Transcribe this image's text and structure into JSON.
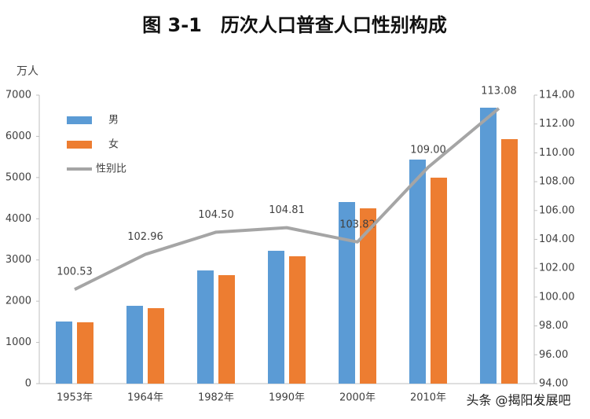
{
  "chart_data": {
    "type": "bar",
    "title": "图 3-1　历次人口普查人口性别构成",
    "y_label": "万人",
    "categories": [
      "1953年",
      "1964年",
      "1982年",
      "1990年",
      "2000年",
      "2010年",
      null
    ],
    "series": [
      {
        "name": "男",
        "color": "#5b9bd5",
        "values": [
          1507,
          1888,
          2746,
          3223,
          4406,
          5436,
          6695
        ]
      },
      {
        "name": "女",
        "color": "#ed7d31",
        "values": [
          1488,
          1831,
          2632,
          3090,
          4253,
          4997,
          5932
        ]
      },
      {
        "name": "性别比",
        "color": "#a5a5a5",
        "type": "line",
        "axis": "y2",
        "values": [
          100.53,
          102.96,
          104.5,
          104.81,
          103.82,
          109,
          113.08
        ],
        "value_labels": [
          "100.53",
          "102.96",
          "104.50",
          "104.81",
          "103.82",
          "109.00",
          "113.08"
        ]
      }
    ],
    "ylim": [
      0,
      7000
    ],
    "yticks": [
      0,
      1000,
      2000,
      3000,
      4000,
      5000,
      6000,
      7000
    ],
    "y2lim": [
      94,
      114
    ],
    "y2ticks": [
      {
        "value": 94,
        "label": "94.00"
      },
      {
        "value": 96,
        "label": "96.00"
      },
      {
        "value": 98,
        "label": "98.00"
      },
      {
        "value": 100,
        "label": "100.00"
      },
      {
        "value": 102,
        "label": "102.00"
      },
      {
        "value": 104,
        "label": "104.00"
      },
      {
        "value": 106,
        "label": "106.00"
      },
      {
        "value": 108,
        "label": "108.00"
      },
      {
        "value": 110,
        "label": "110.00"
      },
      {
        "value": 112,
        "label": "112.00"
      },
      {
        "value": 114,
        "label": "114.00"
      }
    ],
    "legend": "top-left"
  },
  "watermark": "头条 @揭阳发展吧"
}
